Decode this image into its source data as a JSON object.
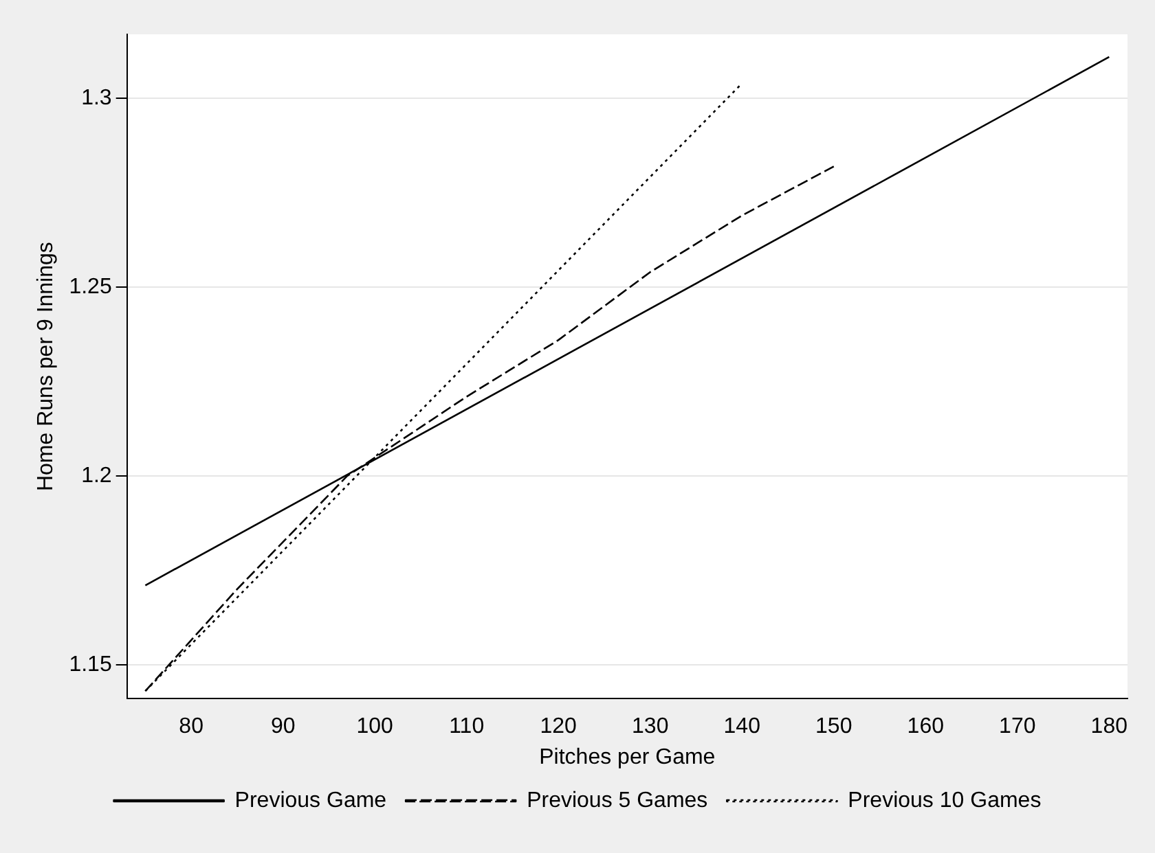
{
  "chart_data": {
    "type": "line",
    "xlabel": "Pitches per Game",
    "ylabel": "Home Runs per 9 Innings",
    "series": [
      {
        "name": "Previous Game",
        "color": "#000000",
        "line_style": "solid",
        "x": [
          75,
          180
        ],
        "values": [
          1.171,
          1.311
        ]
      },
      {
        "name": "Previous 5 Games",
        "color": "#000000",
        "line_style": "dashed",
        "x": [
          75,
          85,
          97,
          110,
          120,
          130,
          140,
          150
        ],
        "values": [
          1.143,
          1.17,
          1.2,
          1.221,
          1.236,
          1.254,
          1.269,
          1.282
        ]
      },
      {
        "name": "Previous 10 Games",
        "color": "#000000",
        "line_style": "dotted",
        "x": [
          75,
          140
        ],
        "values": [
          1.143,
          1.304
        ]
      }
    ],
    "xlim": [
      73,
      182
    ],
    "xticks": [
      80,
      90,
      100,
      110,
      120,
      130,
      140,
      150,
      160,
      170,
      180
    ],
    "ylim": [
      1.141,
      1.317
    ],
    "yticks": [
      1.15,
      1.2,
      1.25,
      1.3
    ],
    "grid": "y",
    "legend": "bottom",
    "marker": "none"
  }
}
